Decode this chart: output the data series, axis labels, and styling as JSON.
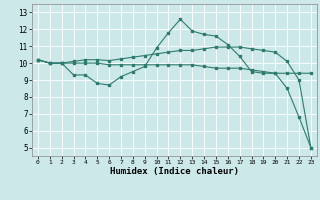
{
  "title": "",
  "xlabel": "Humidex (Indice chaleur)",
  "ylabel": "",
  "bg_color": "#cde8e8",
  "line_color": "#2e7b6e",
  "xlim": [
    -0.5,
    23.5
  ],
  "ylim": [
    4.5,
    13.5
  ],
  "yticks": [
    5,
    6,
    7,
    8,
    9,
    10,
    11,
    12,
    13
  ],
  "xticks": [
    0,
    1,
    2,
    3,
    4,
    5,
    6,
    7,
    8,
    9,
    10,
    11,
    12,
    13,
    14,
    15,
    16,
    17,
    18,
    19,
    20,
    21,
    22,
    23
  ],
  "line1_x": [
    0,
    1,
    2,
    3,
    4,
    5,
    6,
    7,
    8,
    9,
    10,
    11,
    12,
    13,
    14,
    15,
    16,
    17,
    18,
    19,
    20,
    21,
    22,
    23
  ],
  "line1_y": [
    10.2,
    10.0,
    10.0,
    9.3,
    9.3,
    8.8,
    8.7,
    9.2,
    9.5,
    9.8,
    10.9,
    11.8,
    12.6,
    11.9,
    11.7,
    11.6,
    11.1,
    10.4,
    9.5,
    9.4,
    9.4,
    8.5,
    6.8,
    5.0
  ],
  "line2_x": [
    0,
    1,
    2,
    3,
    4,
    5,
    6,
    7,
    8,
    9,
    10,
    11,
    12,
    13,
    14,
    15,
    16,
    17,
    18,
    19,
    20,
    21,
    22,
    23
  ],
  "line2_y": [
    10.2,
    10.0,
    10.0,
    10.0,
    10.0,
    10.0,
    9.9,
    9.9,
    9.9,
    9.9,
    9.9,
    9.9,
    9.9,
    9.9,
    9.8,
    9.7,
    9.7,
    9.7,
    9.6,
    9.5,
    9.4,
    9.4,
    9.4,
    9.4
  ],
  "line3_x": [
    0,
    1,
    2,
    3,
    4,
    5,
    6,
    7,
    8,
    9,
    10,
    11,
    12,
    13,
    14,
    15,
    16,
    17,
    18,
    19,
    20,
    21,
    22,
    23
  ],
  "line3_y": [
    10.2,
    10.0,
    10.0,
    10.1,
    10.2,
    10.2,
    10.15,
    10.25,
    10.35,
    10.45,
    10.55,
    10.65,
    10.75,
    10.75,
    10.85,
    10.95,
    10.95,
    10.95,
    10.85,
    10.75,
    10.65,
    10.1,
    9.0,
    5.0
  ]
}
